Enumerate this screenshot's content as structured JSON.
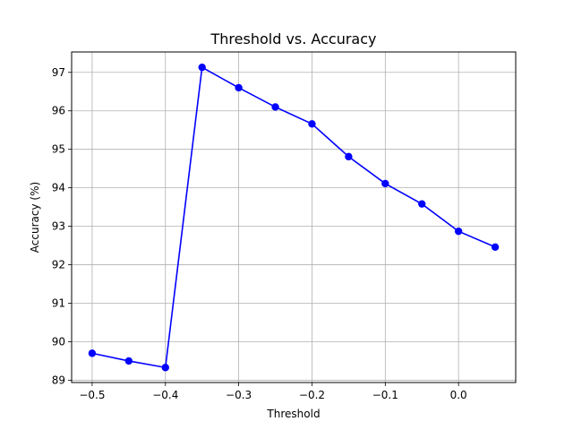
{
  "chart_data": {
    "type": "line",
    "title": "Threshold vs. Accuracy",
    "xlabel": "Threshold",
    "ylabel": "Accuracy (%)",
    "xlim": [
      -0.528,
      0.078
    ],
    "ylim": [
      88.94,
      97.53
    ],
    "xticks": [
      -0.5,
      -0.4,
      -0.3,
      -0.2,
      -0.1,
      0.0
    ],
    "xtick_labels": [
      "−0.5",
      "−0.4",
      "−0.3",
      "−0.2",
      "−0.1",
      "0.0"
    ],
    "yticks": [
      89,
      90,
      91,
      92,
      93,
      94,
      95,
      96,
      97
    ],
    "ytick_labels": [
      "89",
      "90",
      "91",
      "92",
      "93",
      "94",
      "95",
      "96",
      "97"
    ],
    "grid": true,
    "series": [
      {
        "color": "#0000ff",
        "marker": "circle",
        "x": [
          -0.5,
          -0.45,
          -0.4,
          -0.35,
          -0.3,
          -0.25,
          -0.2,
          -0.15,
          -0.1,
          -0.05,
          0.0,
          0.05
        ],
        "y": [
          89.7,
          89.5,
          89.33,
          97.13,
          96.6,
          96.1,
          95.66,
          94.81,
          94.11,
          93.58,
          92.87,
          92.46
        ]
      }
    ]
  }
}
